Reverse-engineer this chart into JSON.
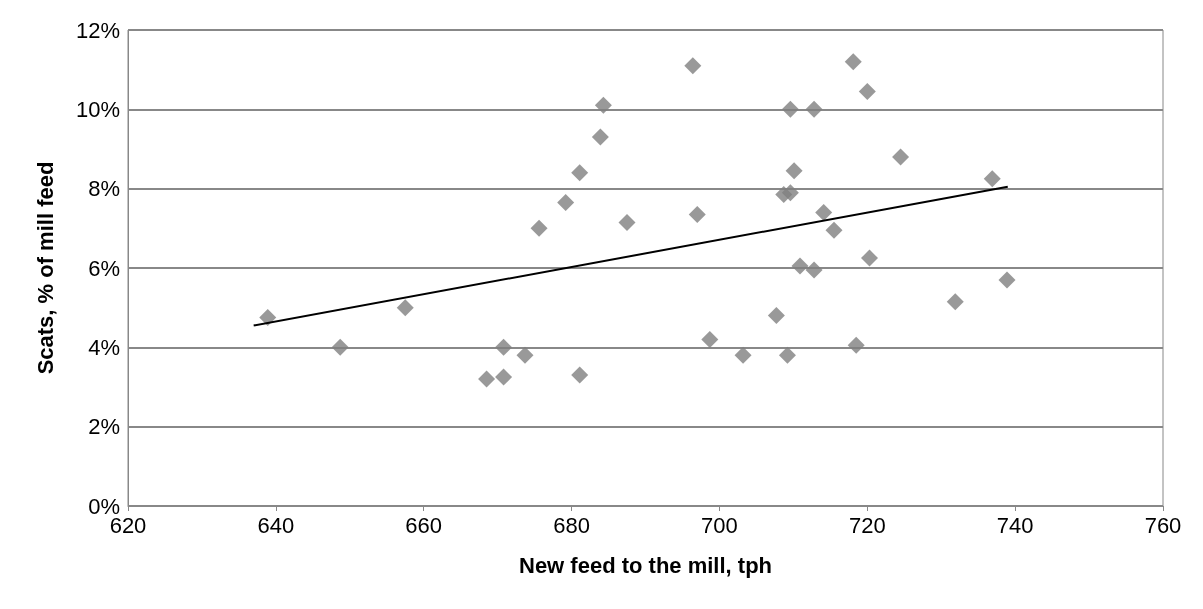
{
  "chart_data": {
    "type": "scatter",
    "xlabel": "New feed to the mill, tph",
    "ylabel": "Scats, % of mill feed",
    "xlim": [
      620,
      760
    ],
    "xticks": [
      620,
      640,
      660,
      680,
      700,
      720,
      740,
      760
    ],
    "ylim": [
      0,
      12
    ],
    "yticks": [
      {
        "value": 0,
        "label": "0%"
      },
      {
        "value": 2,
        "label": "2%"
      },
      {
        "value": 4,
        "label": "4%"
      },
      {
        "value": 6,
        "label": "6%"
      },
      {
        "value": 8,
        "label": "8%"
      },
      {
        "value": 10,
        "label": "10%"
      },
      {
        "value": 12,
        "label": "12%"
      }
    ],
    "grid": "y",
    "series": [
      {
        "color": "#808080",
        "marker": "diamond",
        "x": [
          638.9,
          648.7,
          657.5,
          668.5,
          670.8,
          670.8,
          675.6,
          673.7,
          679.2,
          681.1,
          681.1,
          683.9,
          684.3,
          687.5,
          696.4,
          697,
          698.7,
          703.2,
          707.7,
          708.7,
          709.6,
          709.6,
          709.2,
          710.1,
          710.9,
          712.8,
          712.8,
          714.1,
          715.5,
          718.1,
          718.5,
          720,
          720.3,
          724.5,
          731.9,
          736.9,
          738.9
        ],
        "values": [
          4.75,
          4.0,
          5.0,
          3.2,
          4.0,
          3.25,
          7.0,
          3.8,
          7.65,
          8.4,
          3.3,
          9.3,
          10.1,
          7.15,
          11.1,
          7.35,
          4.2,
          3.8,
          4.8,
          7.85,
          7.9,
          10.0,
          3.8,
          8.45,
          6.05,
          10.0,
          5.95,
          7.4,
          6.95,
          11.2,
          4.05,
          10.45,
          6.25,
          8.8,
          5.15,
          8.25,
          5.7
        ]
      },
      {
        "type": "line",
        "color": "#000000",
        "marker": "none",
        "line_style": "solid",
        "x": [
          637,
          739
        ],
        "values": [
          4.55,
          8.05
        ]
      }
    ]
  }
}
